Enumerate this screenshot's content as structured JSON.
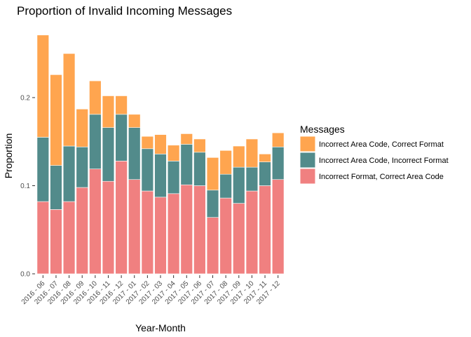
{
  "chart_data": {
    "type": "bar",
    "stacked": true,
    "title": "Proportion of Invalid Incoming Messages",
    "xlabel": "Year-Month",
    "ylabel": "Proportion",
    "ylim": [
      0,
      0.27
    ],
    "yticks": [
      0.0,
      0.1,
      0.2
    ],
    "ytick_labels": [
      "0.0",
      "0.1",
      "0.2"
    ],
    "grid": false,
    "legend_title": "Messages",
    "legend_position": "right",
    "categories": [
      "2016 - 06",
      "2016 - 07",
      "2016 - 08",
      "2016 - 09",
      "2016 - 10",
      "2016 - 11",
      "2016 - 12",
      "2017 - 01",
      "2017 - 02",
      "2017 - 03",
      "2017 - 04",
      "2017 - 05",
      "2017 - 06",
      "2017 - 07",
      "2017 - 08",
      "2017 - 09",
      "2017 - 10",
      "2017 - 11",
      "2017 - 12"
    ],
    "series": [
      {
        "name": "Incorrect Format, Correct Area Code",
        "color": "#F08080",
        "values": [
          0.082,
          0.073,
          0.082,
          0.098,
          0.119,
          0.105,
          0.128,
          0.107,
          0.094,
          0.087,
          0.091,
          0.101,
          0.1,
          0.064,
          0.086,
          0.08,
          0.094,
          0.1,
          0.107
        ]
      },
      {
        "name": "Incorrect Area Code, Incorrect Format",
        "color": "#528B8B",
        "values": [
          0.073,
          0.05,
          0.063,
          0.046,
          0.062,
          0.061,
          0.053,
          0.059,
          0.048,
          0.049,
          0.037,
          0.046,
          0.038,
          0.031,
          0.027,
          0.041,
          0.027,
          0.027,
          0.037
        ]
      },
      {
        "name": "Incorrect Area Code, Correct Format",
        "color": "#FFA54F",
        "values": [
          0.116,
          0.103,
          0.105,
          0.043,
          0.038,
          0.036,
          0.021,
          0.015,
          0.014,
          0.022,
          0.018,
          0.012,
          0.015,
          0.037,
          0.027,
          0.024,
          0.032,
          0.009,
          0.016
        ]
      }
    ],
    "legend_order": [
      2,
      1,
      0
    ]
  }
}
